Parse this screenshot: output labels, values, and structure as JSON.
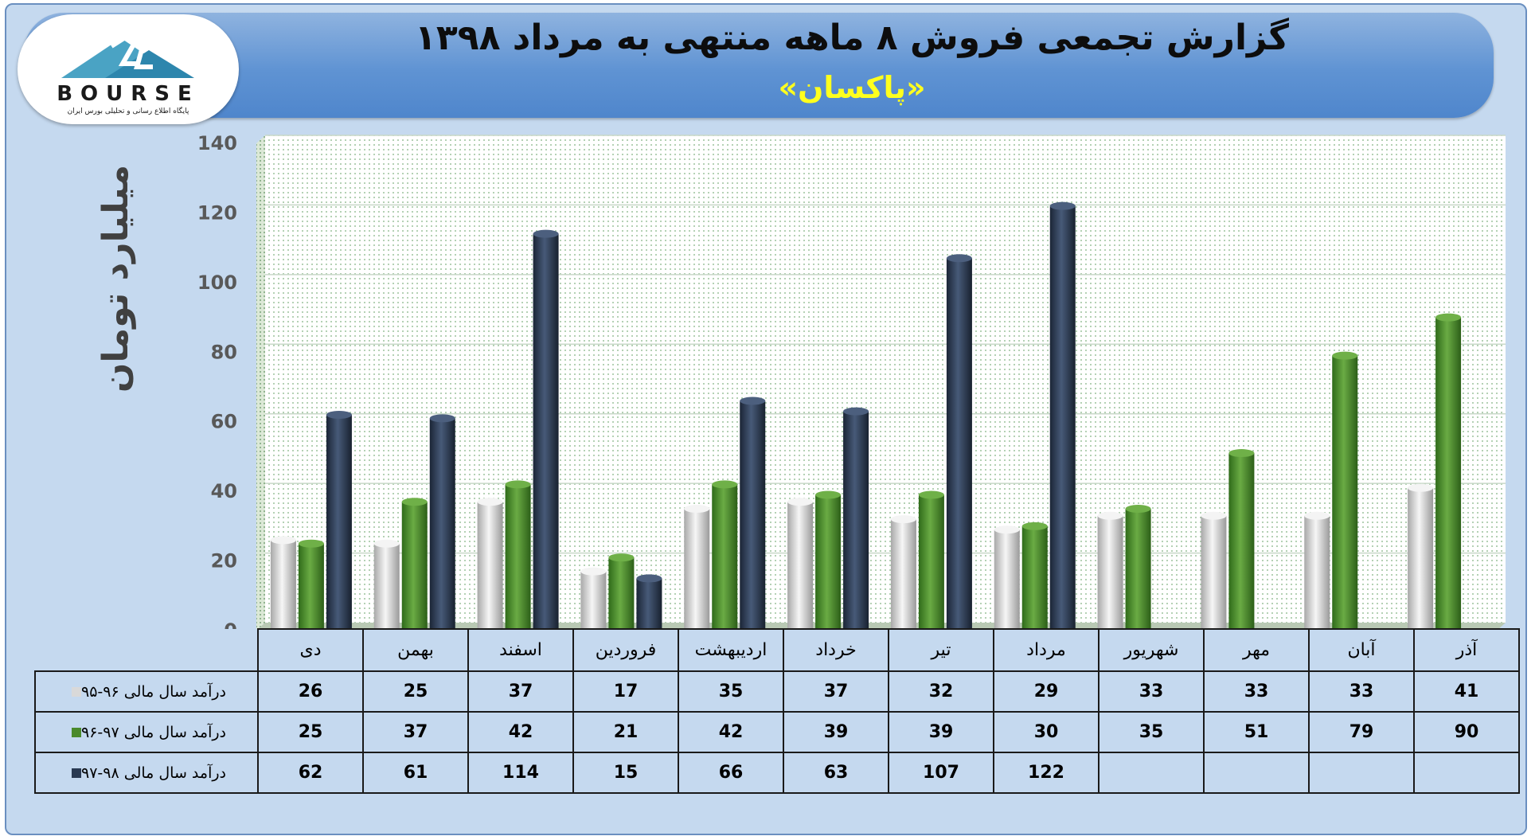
{
  "title": "گزارش تجمعی فروش ۸ ماهه منتهی به مرداد ۱۳۹۸",
  "subtitle": "«پاکسان»",
  "logo": {
    "text": "BOURSE",
    "tagline": "پایگاه اطلاع رسانی و تحلیلی بورس ایران"
  },
  "colors": {
    "series_1": "#d9d9d9",
    "series_2": "#4a8a2c",
    "series_3": "#2a3a52",
    "plot_dots": "#7fb07f",
    "header": "#5f93d3",
    "subtitle": "#ffff1e"
  },
  "chart_data": {
    "type": "bar",
    "ylabel": "میلیارد تومان",
    "ylim": [
      0,
      140
    ],
    "yticks": [
      0,
      20,
      40,
      60,
      80,
      100,
      120,
      140
    ],
    "grid": true,
    "categories": [
      "دی",
      "بهمن",
      "اسفند",
      "فروردین",
      "اردیبهشت",
      "خرداد",
      "تیر",
      "مرداد",
      "شهریور",
      "مهر",
      "آبان",
      "آذر"
    ],
    "series": [
      {
        "name": "درآمد سال مالی ۹۶-۹۵",
        "values": [
          26,
          25,
          37,
          17,
          35,
          37,
          32,
          29,
          33,
          33,
          33,
          41
        ]
      },
      {
        "name": "درآمد سال مالی ۹۷-۹۶",
        "values": [
          25,
          37,
          42,
          21,
          42,
          39,
          39,
          30,
          35,
          51,
          79,
          90
        ]
      },
      {
        "name": "درآمد سال مالی ۹۸-۹۷",
        "values": [
          62,
          61,
          114,
          15,
          66,
          63,
          107,
          122,
          null,
          null,
          null,
          null
        ]
      }
    ]
  }
}
